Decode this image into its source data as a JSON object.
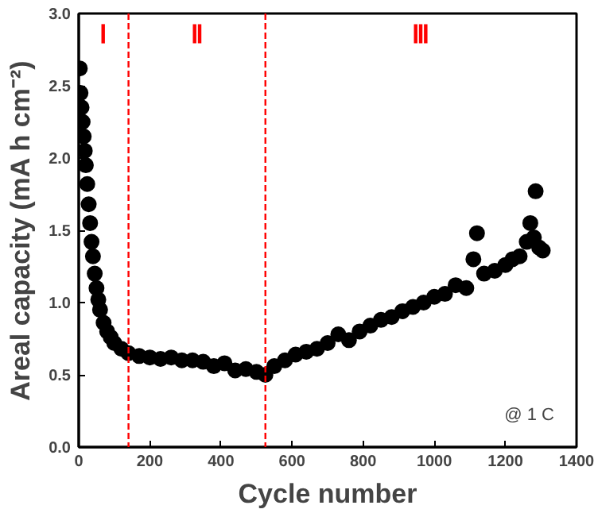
{
  "chart_data": {
    "type": "scatter",
    "xlabel": "Cycle number",
    "ylabel": "Areal capacity (mA h cm⁻²)",
    "xlim": [
      0,
      1400
    ],
    "xticks": [
      0,
      200,
      400,
      600,
      800,
      1000,
      1200,
      1400
    ],
    "ylim": [
      0,
      3.0
    ],
    "yticks": [
      {
        "value": 0,
        "label": "0.0"
      },
      {
        "value": 0.5,
        "label": "0.5"
      },
      {
        "value": 1,
        "label": "1.0"
      },
      {
        "value": 1.5,
        "label": "1.5"
      },
      {
        "value": 2,
        "label": "2.0"
      },
      {
        "value": 2.5,
        "label": "2.5"
      },
      {
        "value": 3,
        "label": "3.0"
      }
    ],
    "grid": false,
    "marker": "circle",
    "x": [
      3,
      5,
      8,
      11,
      14,
      17,
      20,
      24,
      28,
      32,
      36,
      40,
      45,
      50,
      55,
      60,
      70,
      80,
      90,
      100,
      120,
      140,
      170,
      200,
      230,
      260,
      290,
      320,
      350,
      380,
      410,
      440,
      470,
      500,
      525,
      550,
      580,
      610,
      640,
      670,
      700,
      730,
      760,
      790,
      820,
      850,
      880,
      910,
      940,
      970,
      1000,
      1030,
      1060,
      1090,
      1110,
      1120,
      1140,
      1170,
      1200,
      1220,
      1240,
      1260,
      1270,
      1280,
      1285,
      1295,
      1305
    ],
    "values": [
      2.62,
      2.45,
      2.35,
      2.25,
      2.15,
      2.05,
      1.95,
      1.82,
      1.68,
      1.55,
      1.42,
      1.32,
      1.2,
      1.1,
      1.02,
      0.95,
      0.86,
      0.8,
      0.76,
      0.72,
      0.68,
      0.65,
      0.63,
      0.62,
      0.61,
      0.62,
      0.6,
      0.6,
      0.59,
      0.56,
      0.58,
      0.53,
      0.54,
      0.52,
      0.5,
      0.56,
      0.6,
      0.64,
      0.66,
      0.68,
      0.72,
      0.78,
      0.74,
      0.8,
      0.84,
      0.88,
      0.9,
      0.94,
      0.97,
      1.0,
      1.04,
      1.06,
      1.12,
      1.1,
      1.3,
      1.48,
      1.2,
      1.22,
      1.26,
      1.3,
      1.32,
      1.42,
      1.55,
      1.45,
      1.77,
      1.38,
      1.36
    ],
    "color": "#000000",
    "ref_lines": [
      {
        "axis": "x",
        "value": 140,
        "color": "#ff0000",
        "line_style": "dashed"
      },
      {
        "axis": "x",
        "value": 525,
        "color": "#ff0000",
        "line_style": "dashed"
      }
    ],
    "annotations": [
      "Ⅰ",
      "Ⅱ",
      "Ⅲ",
      "@ 1 C"
    ]
  }
}
